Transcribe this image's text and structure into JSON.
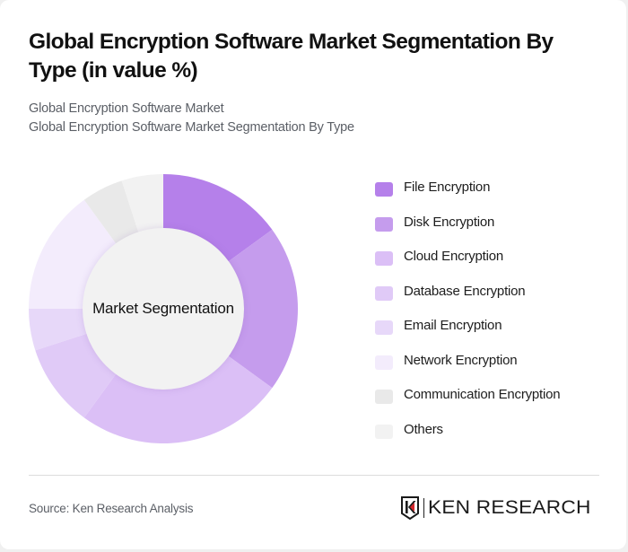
{
  "header": {
    "title": "Global Encryption Software Market Segmentation By Type (in value %)",
    "subtitle_line1": "Global Encryption Software Market",
    "subtitle_line2": "Global Encryption Software Market Segmentation By Type"
  },
  "donut": {
    "center_label": "Market Segmentation"
  },
  "legend": [
    {
      "label": "File Encryption",
      "color": "#b580ea"
    },
    {
      "label": "Disk Encryption",
      "color": "#c59ced"
    },
    {
      "label": "Cloud Encryption",
      "color": "#dbbff6"
    },
    {
      "label": "Database Encryption",
      "color": "#e0caf7"
    },
    {
      "label": "Email Encryption",
      "color": "#e7d8f9"
    },
    {
      "label": "Network Encryption",
      "color": "#f3ecfc"
    },
    {
      "label": "Communication Encryption",
      "color": "#e9e9e9"
    },
    {
      "label": "Others",
      "color": "#f2f2f2"
    }
  ],
  "footer": {
    "source": "Source: Ken Research Analysis",
    "logo_text": "KEN RESEARCH",
    "logo_accent": "#d6262b"
  },
  "chart_data": {
    "type": "pie",
    "subtype": "donut",
    "title": "Global Encryption Software Market Segmentation By Type (in value %)",
    "subtitle": [
      "Global Encryption Software Market",
      "Global Encryption Software Market Segmentation By Type"
    ],
    "center_label": "Market Segmentation",
    "categories": [
      "File Encryption",
      "Disk Encryption",
      "Cloud Encryption",
      "Database Encryption",
      "Email Encryption",
      "Network Encryption",
      "Communication Encryption",
      "Others"
    ],
    "values": [
      15,
      20,
      25,
      10,
      5,
      15,
      5,
      5
    ],
    "unit": "%",
    "colors": [
      "#b580ea",
      "#c59ced",
      "#dbbff6",
      "#e0caf7",
      "#e7d8f9",
      "#f3ecfc",
      "#e9e9e9",
      "#f2f2f2"
    ],
    "start_angle_deg": 0,
    "direction": "clockwise",
    "legend_position": "right",
    "source": "Source: Ken Research Analysis"
  }
}
